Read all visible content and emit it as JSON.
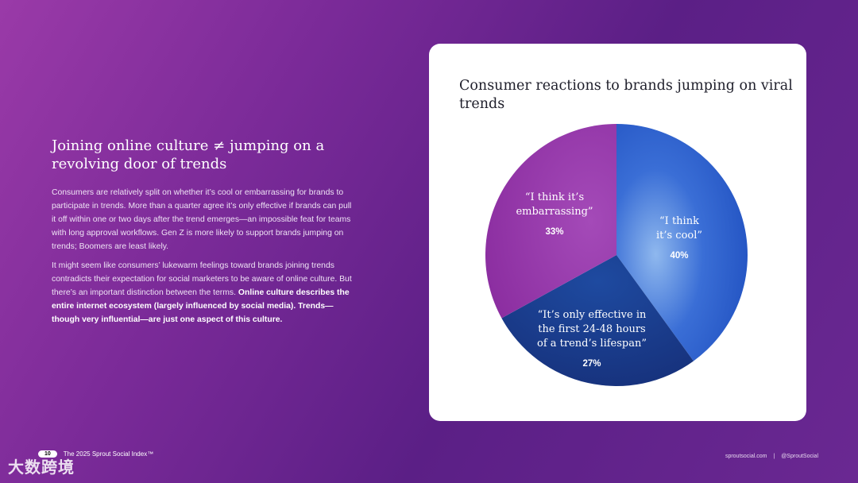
{
  "left": {
    "heading": "Joining online culture ≠ jumping on a revolving door of trends",
    "para1": "Consumers are relatively split on whether it’s cool or embarrassing for brands to participate in trends. More than a quarter agree it’s only effective if brands can pull it off within one or two days after the trend emerges—an impossible feat for teams with long approval workflows. Gen Z is more likely to support brands jumping on trends; Boomers are least likely.",
    "para2_plain": "It might seem like consumers’ lukewarm feelings toward brands joining trends contradicts their expectation for social marketers to be aware of online culture. But there’s an important distinction between the terms.",
    "para2_bold": "Online culture describes the entire internet ecosystem (largely influenced by social media). Trends—though very influential—are just one aspect of this culture."
  },
  "chart_data": {
    "type": "pie",
    "title": "Consumer reactions to brands jumping on viral trends",
    "slices": [
      {
        "label_lines": [
          "“I think",
          "it’s cool”"
        ],
        "value": 40,
        "value_label": "40%",
        "color": "#3a6ed6"
      },
      {
        "label_lines": [
          "“It’s only effective in",
          "the first 24-48 hours",
          "of a trend’s lifespan”"
        ],
        "value": 27,
        "value_label": "27%",
        "color": "#1e3a8a"
      },
      {
        "label_lines": [
          "“I think it’s",
          "embarrassing”"
        ],
        "value": 33,
        "value_label": "33%",
        "color": "#9b3cae"
      }
    ]
  },
  "footer": {
    "page_number": "10",
    "report_title": "The 2025 Sprout Social Index™",
    "site": "sproutsocial.com",
    "separator": "|",
    "handle": "@SproutSocial"
  },
  "watermark": "大数跨境"
}
